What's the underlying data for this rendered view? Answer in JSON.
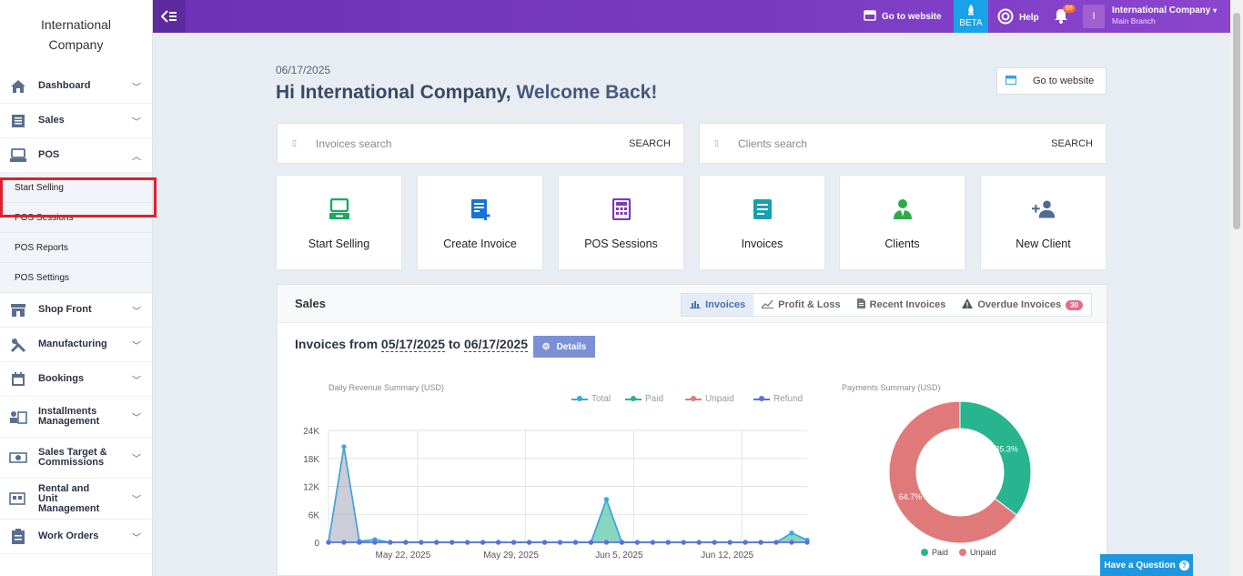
{
  "company": "International Company",
  "sidebar": {
    "items": [
      {
        "label": "Dashboard",
        "icon": "home-icon",
        "chev": "⌄"
      },
      {
        "label": "Sales",
        "icon": "list-icon",
        "chev": "⌄"
      },
      {
        "label": "POS",
        "icon": "pos-terminal-icon",
        "chev": "⌃"
      }
    ],
    "pos_sub": [
      "Start Selling",
      "POS Sessions",
      "POS Reports",
      "POS Settings"
    ],
    "items2": [
      {
        "label": "Shop Front",
        "icon": "storefront-icon"
      },
      {
        "label": "Manufacturing",
        "icon": "tools-icon"
      },
      {
        "label": "Bookings",
        "icon": "calendar-icon"
      },
      {
        "label": "Installments Management",
        "icon": "installments-icon"
      },
      {
        "label": "Sales Target & Commissions",
        "icon": "money-icon"
      },
      {
        "label": "Rental and Unit Management",
        "icon": "rental-icon"
      },
      {
        "label": "Work Orders",
        "icon": "clipboard-icon"
      }
    ]
  },
  "topbar": {
    "go_to_website": "Go to website",
    "beta": "BETA",
    "help": "Help",
    "notifications": "69",
    "user_initial": "I",
    "user_company": "International Company",
    "user_branch": "Main Branch"
  },
  "welcome": {
    "date": "06/17/2025",
    "greeting": "Hi International Company,",
    "welcome_back": " Welcome Back!",
    "go_to_website": "Go to website"
  },
  "search": {
    "invoices_placeholder": "Invoices search",
    "clients_placeholder": "Clients search",
    "button": "SEARCH"
  },
  "shortcuts": [
    {
      "label": "Start Selling",
      "icon": "pos-terminal-icon",
      "color": "#1aa960"
    },
    {
      "label": "Create Invoice",
      "icon": "create-invoice-icon",
      "color": "#1873d8"
    },
    {
      "label": "POS Sessions",
      "icon": "calculator-icon",
      "color": "#7a3bb5"
    },
    {
      "label": "Invoices",
      "icon": "document-icon",
      "color": "#1a9fb0"
    },
    {
      "label": "Clients",
      "icon": "client-icon",
      "color": "#2eaa4a"
    },
    {
      "label": "New Client",
      "icon": "add-user-icon",
      "color": "#4f6c8e"
    }
  ],
  "sales": {
    "title": "Sales",
    "tabs": [
      {
        "label": "Invoices",
        "icon": "bar-chart-icon"
      },
      {
        "label": "Profit & Loss",
        "icon": "line-chart-icon"
      },
      {
        "label": "Recent Invoices",
        "icon": "file-icon"
      },
      {
        "label": "Overdue Invoices",
        "icon": "warning-icon",
        "badge": "30"
      }
    ],
    "range_prefix": "Invoices from",
    "range_from": "05/17/2025",
    "range_to_word": "to",
    "range_to": "06/17/2025",
    "details": "Details"
  },
  "chart_data": [
    {
      "type": "area",
      "title": "Daily Revenue Summary (USD)",
      "x": [
        "05/17",
        "05/18",
        "05/19",
        "05/20",
        "05/21",
        "05/22",
        "05/23",
        "05/24",
        "05/25",
        "05/26",
        "05/27",
        "05/28",
        "05/29",
        "05/30",
        "05/31",
        "06/01",
        "06/02",
        "06/03",
        "06/04",
        "06/05",
        "06/06",
        "06/07",
        "06/08",
        "06/09",
        "06/10",
        "06/11",
        "06/12",
        "06/13",
        "06/14",
        "06/15",
        "06/16",
        "06/17"
      ],
      "x_tick_labels": [
        "May 22, 2025",
        "May 29, 2025",
        "Jun 5, 2025",
        "Jun 12, 2025"
      ],
      "y_ticks": [
        "0",
        "6K",
        "12K",
        "18K",
        "24K"
      ],
      "ylim": [
        0,
        24000
      ],
      "series": [
        {
          "name": "Total",
          "color": "#3aa7df",
          "values": [
            0,
            20500,
            200,
            600,
            0,
            0,
            0,
            0,
            0,
            0,
            0,
            0,
            0,
            0,
            0,
            0,
            0,
            0,
            9200,
            0,
            0,
            0,
            0,
            0,
            0,
            0,
            0,
            0,
            0,
            0,
            2000,
            500
          ]
        },
        {
          "name": "Paid",
          "color": "#27b48f",
          "values": [
            0,
            0,
            0,
            0,
            0,
            0,
            0,
            0,
            0,
            0,
            0,
            0,
            0,
            0,
            0,
            0,
            0,
            0,
            9200,
            0,
            0,
            0,
            0,
            0,
            0,
            0,
            0,
            0,
            0,
            0,
            2000,
            500
          ]
        },
        {
          "name": "Unpaid",
          "color": "#e07a7a",
          "values": [
            0,
            20500,
            200,
            600,
            0,
            0,
            0,
            0,
            0,
            0,
            0,
            0,
            0,
            0,
            0,
            0,
            0,
            0,
            0,
            0,
            0,
            0,
            0,
            0,
            0,
            0,
            0,
            0,
            0,
            0,
            0,
            0
          ]
        },
        {
          "name": "Refund",
          "color": "#5b6fe0",
          "values": [
            0,
            0,
            0,
            0,
            0,
            0,
            0,
            0,
            0,
            0,
            0,
            0,
            0,
            0,
            0,
            0,
            0,
            0,
            0,
            0,
            0,
            0,
            0,
            0,
            0,
            0,
            0,
            0,
            0,
            0,
            0,
            0
          ]
        }
      ],
      "grid": true,
      "legend": "top-right"
    },
    {
      "type": "pie",
      "title": "Payments Summary (USD)",
      "categories": [
        "Paid",
        "Unpaid"
      ],
      "values": [
        35.3,
        64.7
      ],
      "labels": [
        "35.3%",
        "64.7%"
      ],
      "colors": [
        "#27b48f",
        "#e07a7a"
      ]
    }
  ],
  "help_button": "Have a Question"
}
